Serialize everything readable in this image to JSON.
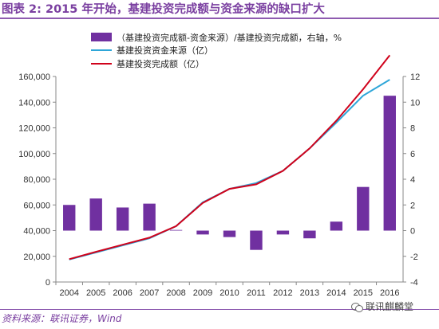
{
  "title": "图表 2: 2015 年开始，基建投资完成额与资金来源的缺口扩大",
  "source": "资料来源：联讯证券，Wind",
  "watermark": "联讯麒麟堂",
  "colors": {
    "bar": "#7030a0",
    "line_source": "#2ea6d8",
    "line_investment": "#d0021b",
    "axis_text": "#333333",
    "title": "#7a3fa0"
  },
  "chart_data": {
    "type": "bar",
    "categories": [
      "2004",
      "2005",
      "2006",
      "2007",
      "2008",
      "2009",
      "2010",
      "2011",
      "2012",
      "2013",
      "2014",
      "2015",
      "2016"
    ],
    "y_left": {
      "ylim": [
        0,
        160000
      ],
      "ticks": [
        "0",
        "20,000",
        "40,000",
        "60,000",
        "80,000",
        "100,000",
        "120,000",
        "140,000",
        "160,000"
      ]
    },
    "y_right": {
      "ylim": [
        -4,
        12
      ],
      "ticks": [
        "-4",
        "-2",
        "0",
        "2",
        "4",
        "6",
        "8",
        "10",
        "12"
      ]
    },
    "series": [
      {
        "name": "（基建投资完成额-资金来源）/基建投资完成额，右轴，%",
        "type": "bar",
        "axis": "right",
        "values": [
          2.0,
          2.5,
          1.8,
          2.1,
          0.05,
          -0.3,
          -0.5,
          -1.5,
          -0.3,
          -0.6,
          0.7,
          3.4,
          10.5
        ]
      },
      {
        "name": "基建投资资金来源（亿）",
        "type": "line",
        "axis": "left",
        "values": [
          17500,
          23000,
          28500,
          34000,
          43500,
          62000,
          72500,
          77000,
          86500,
          104000,
          124000,
          145000,
          157500
        ]
      },
      {
        "name": "基建投资完成额（亿）",
        "type": "line",
        "axis": "left",
        "values": [
          17800,
          23500,
          29000,
          34500,
          43500,
          61500,
          72500,
          76000,
          86500,
          104000,
          125500,
          150000,
          176500
        ]
      }
    ]
  }
}
